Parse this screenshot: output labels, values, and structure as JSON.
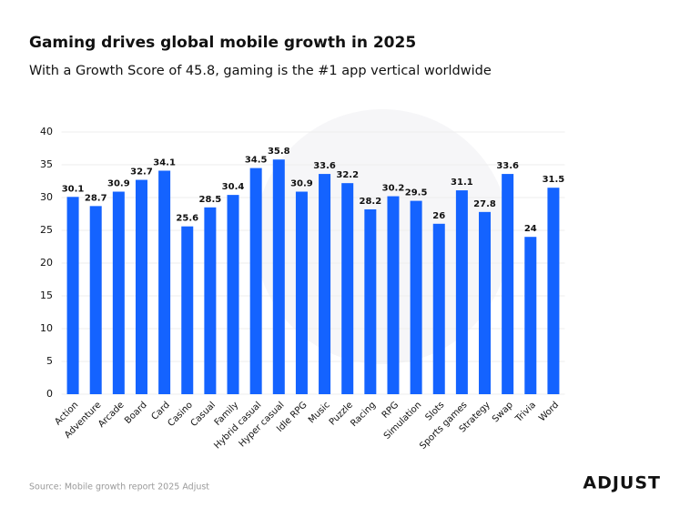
{
  "chart_data": {
    "type": "bar",
    "title": "Gaming drives global mobile growth in 2025",
    "subtitle": "With a Growth Score of 45.8, gaming is the #1 app vertical worldwide",
    "categories": [
      "Action",
      "Adventure",
      "Arcade",
      "Board",
      "Card",
      "Casino",
      "Casual",
      "Family",
      "Hybrid casual",
      "Hyper casual",
      "Idle RPG",
      "Music",
      "Puzzle",
      "Racing",
      "RPG",
      "Simulation",
      "Slots",
      "Sports games",
      "Strategy",
      "Swap",
      "Trivia",
      "Word"
    ],
    "values": [
      30.1,
      28.7,
      30.9,
      32.7,
      34.1,
      25.6,
      28.5,
      30.4,
      34.5,
      35.8,
      30.9,
      33.6,
      32.2,
      28.2,
      30.2,
      29.5,
      26,
      31.1,
      27.8,
      33.6,
      24,
      31.5
    ],
    "color": "#1463ff",
    "ylim": [
      0,
      40
    ],
    "yticks": [
      0,
      5,
      10,
      15,
      20,
      25,
      30,
      35,
      40
    ],
    "grid": true,
    "source": "Source: Mobile growth report 2025 Adjust",
    "brand": "ADJUST"
  }
}
